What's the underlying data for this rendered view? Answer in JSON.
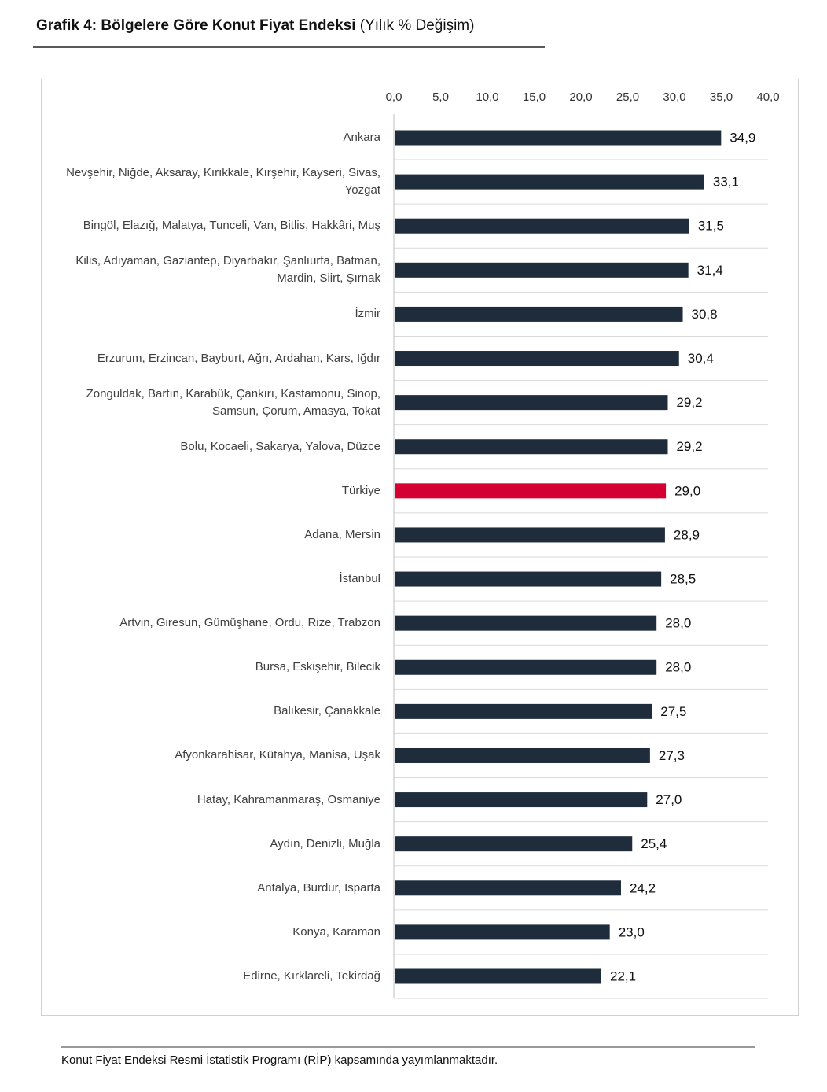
{
  "chart_data": {
    "type": "barh",
    "title": "Grafik 4: Bölgelere Göre Konut Fiyat Endeksi",
    "subtitle": "(Yılık % Değişim)",
    "categories": [
      "Ankara",
      "Nevşehir, Niğde, Aksaray, Kırıkkale, Kırşehir, Kayseri, Sivas, Yozgat",
      "Bingöl, Elazığ, Malatya, Tunceli, Van, Bitlis, Hakkâri, Muş",
      "Kilis, Adıyaman, Gaziantep, Diyarbakır, Şanlıurfa, Batman, Mardin, Siirt, Şırnak",
      "İzmir",
      "Erzurum, Erzincan, Bayburt, Ağrı, Ardahan, Kars, Iğdır",
      "Zonguldak, Bartın, Karabük, Çankırı, Kastamonu, Sinop, Samsun, Çorum, Amasya, Tokat",
      "Bolu, Kocaeli, Sakarya, Yalova, Düzce",
      "Türkiye",
      "Adana, Mersin",
      "İstanbul",
      "Artvin, Giresun, Gümüşhane, Ordu, Rize, Trabzon",
      "Bursa, Eskişehir, Bilecik",
      "Balıkesir, Çanakkale",
      "Afyonkarahisar, Kütahya, Manisa, Uşak",
      "Hatay, Kahramanmaraş, Osmaniye",
      "Aydın, Denizli, Muğla",
      "Antalya, Burdur, Isparta",
      "Konya, Karaman",
      "Edirne, Kırklareli, Tekirdağ"
    ],
    "values": [
      34.9,
      33.1,
      31.5,
      31.4,
      30.8,
      30.4,
      29.2,
      29.2,
      29.0,
      28.9,
      28.5,
      28.0,
      28.0,
      27.5,
      27.3,
      27.0,
      25.4,
      24.2,
      23.0,
      22.1
    ],
    "value_labels": [
      "34,9",
      "33,1",
      "31,5",
      "31,4",
      "30,8",
      "30,4",
      "29,2",
      "29,2",
      "29,0",
      "28,9",
      "28,5",
      "28,0",
      "28,0",
      "27,5",
      "27,3",
      "27,0",
      "25,4",
      "24,2",
      "23,0",
      "22,1"
    ],
    "colors": [
      "#1e2c3c",
      "#1e2c3c",
      "#1e2c3c",
      "#1e2c3c",
      "#1e2c3c",
      "#1e2c3c",
      "#1e2c3c",
      "#1e2c3c",
      "#d50032",
      "#1e2c3c",
      "#1e2c3c",
      "#1e2c3c",
      "#1e2c3c",
      "#1e2c3c",
      "#1e2c3c",
      "#1e2c3c",
      "#1e2c3c",
      "#1e2c3c",
      "#1e2c3c",
      "#1e2c3c"
    ],
    "xlim": [
      0,
      40
    ],
    "xticks": [
      {
        "value": 0,
        "label": "0,0"
      },
      {
        "value": 5,
        "label": "5,0"
      },
      {
        "value": 10,
        "label": "10,0"
      },
      {
        "value": 15,
        "label": "15,0"
      },
      {
        "value": 20,
        "label": "20,0"
      },
      {
        "value": 25,
        "label": "25,0"
      },
      {
        "value": 30,
        "label": "30,0"
      },
      {
        "value": 35,
        "label": "35,0"
      },
      {
        "value": 40,
        "label": "40,0"
      }
    ],
    "note": "Konut Fiyat Endeksi Resmi İstatistik Programı (RİP) kapsamında yayımlanmaktadır."
  }
}
